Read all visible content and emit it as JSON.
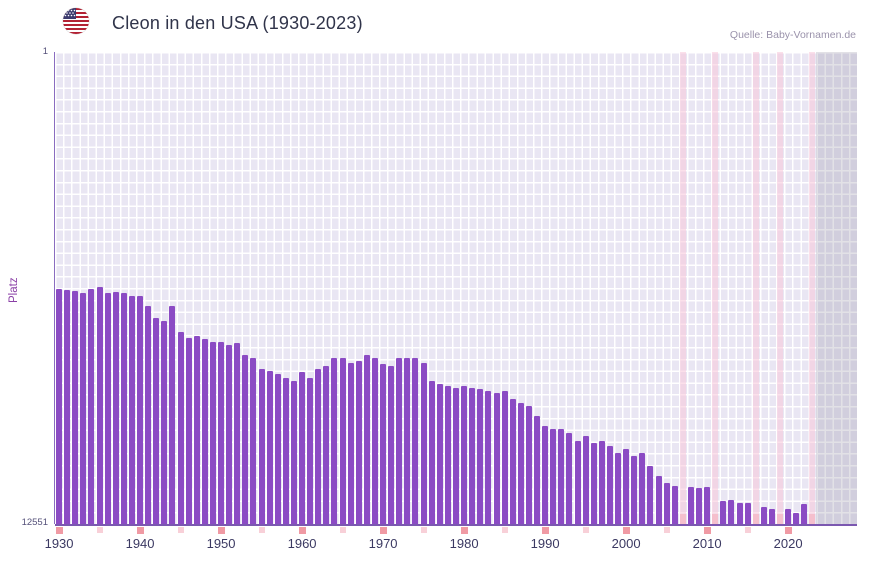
{
  "header": {
    "title": "Cleon in den USA (1930-2023)",
    "source": "Quelle: Baby-Vornamen.de"
  },
  "chart_data": {
    "type": "bar",
    "title": "Cleon in den USA (1930-2023)",
    "xlabel": "",
    "ylabel": "Platz",
    "y_axis": {
      "inverted": true,
      "min": 1,
      "max": 12551,
      "top_label": "1",
      "bottom_label": "12551"
    },
    "x_domain": [
      1929.5,
      2028.5
    ],
    "x_ticks": [
      1930,
      1940,
      1950,
      1960,
      1970,
      1980,
      1990,
      2000,
      2010,
      2020
    ],
    "x_minor_ticks": [
      1935,
      1945,
      1955,
      1965,
      1975,
      1985,
      1995,
      2005,
      2015
    ],
    "no_data_region_start": 2023.5,
    "grid": true,
    "legend": "none",
    "years": [
      1930,
      1931,
      1932,
      1933,
      1934,
      1935,
      1936,
      1937,
      1938,
      1939,
      1940,
      1941,
      1942,
      1943,
      1944,
      1945,
      1946,
      1947,
      1948,
      1949,
      1950,
      1951,
      1952,
      1953,
      1954,
      1955,
      1956,
      1957,
      1958,
      1959,
      1960,
      1961,
      1962,
      1963,
      1964,
      1965,
      1966,
      1967,
      1968,
      1969,
      1970,
      1971,
      1972,
      1973,
      1974,
      1975,
      1976,
      1977,
      1978,
      1979,
      1980,
      1981,
      1982,
      1983,
      1984,
      1985,
      1986,
      1987,
      1988,
      1989,
      1990,
      1991,
      1992,
      1993,
      1994,
      1995,
      1996,
      1997,
      1998,
      1999,
      2000,
      2001,
      2002,
      2003,
      2004,
      2005,
      2006,
      2007,
      2008,
      2009,
      2010,
      2011,
      2012,
      2013,
      2014,
      2015,
      2016,
      2017,
      2018,
      2019,
      2020,
      2021,
      2022,
      2023
    ],
    "ranks": [
      6300,
      6320,
      6350,
      6420,
      6300,
      6250,
      6420,
      6380,
      6400,
      6480,
      6500,
      6750,
      7080,
      7150,
      6760,
      7450,
      7600,
      7550,
      7620,
      7720,
      7700,
      7800,
      7750,
      8060,
      8140,
      8420,
      8470,
      8550,
      8680,
      8740,
      8520,
      8680,
      8420,
      8340,
      8150,
      8130,
      8260,
      8210,
      8070,
      8130,
      8290,
      8340,
      8150,
      8150,
      8130,
      8260,
      8740,
      8820,
      8870,
      8930,
      8870,
      8930,
      8950,
      9010,
      9060,
      9010,
      9220,
      9330,
      9410,
      9670,
      9940,
      10020,
      10020,
      10120,
      10340,
      10210,
      10390,
      10340,
      10470,
      10660,
      10550,
      10740,
      10660,
      11000,
      11270,
      11450,
      11530,
      null,
      11570,
      11600,
      11580,
      null,
      11950,
      11900,
      12000,
      11980,
      null,
      12100,
      12150,
      null,
      12150,
      12250,
      12020,
      null
    ],
    "missing_years": [
      2007,
      2011,
      2016,
      2019,
      2023
    ],
    "colors": {
      "bar": "#8b4bc4",
      "plot_background": "#e9e6f3",
      "grid": "#ffffff",
      "missing_column": "#f7c7d8",
      "tick_major": "#f09aa4",
      "tick_minor": "#f8d0d8",
      "axis": "#7b58b0",
      "no_data_band": "#dcd9e2",
      "tick_label": "#3b3962",
      "axis_title": "#8a3fa6"
    }
  }
}
